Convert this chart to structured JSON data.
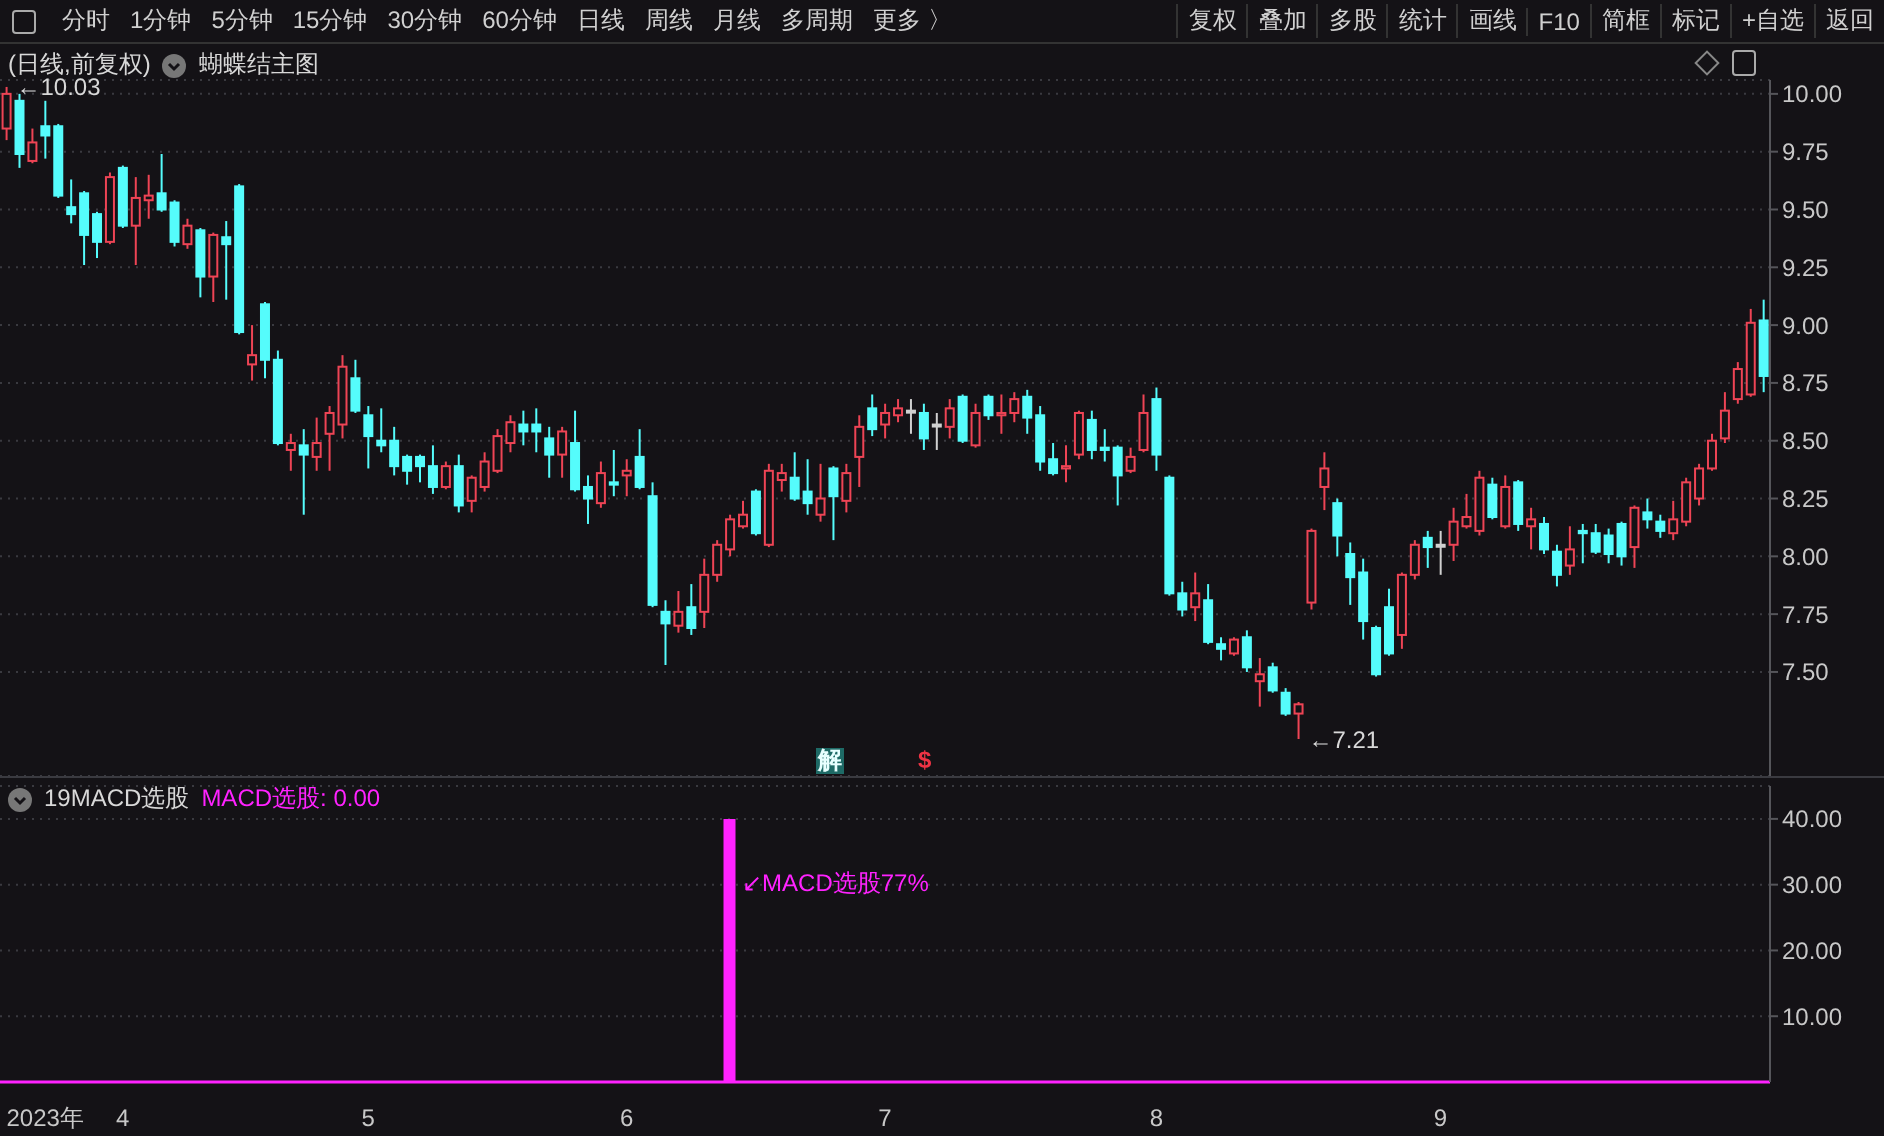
{
  "chart_data": [
    {
      "type": "candlestick",
      "title": "(日线,前复权)",
      "subtitle": "蝴蝶结主图",
      "annotations": [
        "分时",
        "1分钟",
        "5分钟",
        "15分钟",
        "30分钟",
        "60分钟",
        "日线",
        "周线",
        "月线",
        "多周期",
        "更多 〉",
        "复权",
        "叠加",
        "多股",
        "统计",
        "画线",
        "F10",
        "简框",
        "标记",
        "+自选",
        "返回",
        "←10.03",
        "←7.21",
        "解",
        "$"
      ],
      "categories": [
        null,
        null,
        null,
        null,
        null,
        null,
        null,
        null,
        null,
        null,
        null,
        null,
        null,
        null,
        null,
        null,
        null,
        null,
        null,
        null,
        null,
        null,
        null,
        null,
        null,
        null,
        null,
        null,
        null,
        null,
        null,
        null,
        null,
        null,
        null,
        null,
        null,
        null,
        null,
        null,
        null,
        null,
        null,
        null,
        null,
        null,
        null,
        null,
        null,
        null,
        null,
        null,
        null,
        null,
        null,
        null,
        null,
        null,
        null,
        null,
        null,
        null,
        null,
        null,
        null,
        null,
        null,
        null,
        null,
        null,
        null,
        null,
        null,
        null,
        null,
        null,
        null,
        null,
        null,
        null,
        null,
        null,
        null,
        null,
        null,
        null,
        null,
        null,
        null,
        null,
        null,
        null,
        null,
        null,
        null,
        null,
        null,
        null,
        null,
        null,
        null,
        null,
        null,
        null,
        null,
        null,
        null,
        null,
        null,
        null,
        null,
        null,
        null,
        null,
        null,
        null,
        null,
        null,
        null,
        null,
        null,
        null,
        null,
        null,
        null,
        null,
        null,
        null,
        null,
        null,
        null,
        null,
        null,
        null,
        null,
        null,
        null
      ],
      "ohlc": [
        [
          9.85,
          10.03,
          9.8,
          10.0
        ],
        [
          9.97,
          10.0,
          9.68,
          9.74
        ],
        [
          9.71,
          9.85,
          9.7,
          9.79
        ],
        [
          9.86,
          9.97,
          9.72,
          9.82
        ],
        [
          9.86,
          9.87,
          9.55,
          9.56
        ],
        [
          9.51,
          9.63,
          9.44,
          9.48
        ],
        [
          9.57,
          9.58,
          9.26,
          9.39
        ],
        [
          9.48,
          9.49,
          9.29,
          9.36
        ],
        [
          9.36,
          9.66,
          9.35,
          9.64
        ],
        [
          9.68,
          9.69,
          9.42,
          9.43
        ],
        [
          9.43,
          9.64,
          9.26,
          9.55
        ],
        [
          9.54,
          9.65,
          9.46,
          9.56
        ],
        [
          9.57,
          9.74,
          9.49,
          9.5
        ],
        [
          9.53,
          9.54,
          9.34,
          9.36
        ],
        [
          9.35,
          9.46,
          9.33,
          9.43
        ],
        [
          9.41,
          9.42,
          9.12,
          9.21
        ],
        [
          9.21,
          9.4,
          9.1,
          9.39
        ],
        [
          9.38,
          9.45,
          9.11,
          9.35
        ],
        [
          9.6,
          9.61,
          8.96,
          8.97
        ],
        [
          8.83,
          9.0,
          8.76,
          8.87
        ],
        [
          9.09,
          9.1,
          8.77,
          8.85
        ],
        [
          8.85,
          8.89,
          8.48,
          8.49
        ],
        [
          8.46,
          8.53,
          8.37,
          8.49
        ],
        [
          8.48,
          8.55,
          8.18,
          8.44
        ],
        [
          8.43,
          8.6,
          8.37,
          8.49
        ],
        [
          8.53,
          8.65,
          8.37,
          8.62
        ],
        [
          8.57,
          8.87,
          8.51,
          8.82
        ],
        [
          8.77,
          8.85,
          8.62,
          8.63
        ],
        [
          8.61,
          8.65,
          8.38,
          8.52
        ],
        [
          8.5,
          8.64,
          8.45,
          8.48
        ],
        [
          8.5,
          8.56,
          8.35,
          8.39
        ],
        [
          8.43,
          8.44,
          8.31,
          8.37
        ],
        [
          8.43,
          8.44,
          8.32,
          8.39
        ],
        [
          8.39,
          8.48,
          8.27,
          8.3
        ],
        [
          8.3,
          8.41,
          8.29,
          8.39
        ],
        [
          8.39,
          8.44,
          8.19,
          8.22
        ],
        [
          8.24,
          8.35,
          8.19,
          8.34
        ],
        [
          8.3,
          8.45,
          8.28,
          8.41
        ],
        [
          8.37,
          8.55,
          8.36,
          8.52
        ],
        [
          8.49,
          8.61,
          8.45,
          8.58
        ],
        [
          8.57,
          8.63,
          8.48,
          8.54
        ],
        [
          8.57,
          8.64,
          8.45,
          8.54
        ],
        [
          8.51,
          8.56,
          8.34,
          8.44
        ],
        [
          8.44,
          8.56,
          8.34,
          8.54
        ],
        [
          8.49,
          8.63,
          8.28,
          8.29
        ],
        [
          8.3,
          8.35,
          8.14,
          8.25
        ],
        [
          8.23,
          8.41,
          8.21,
          8.36
        ],
        [
          8.32,
          8.46,
          8.26,
          8.31
        ],
        [
          8.35,
          8.42,
          8.26,
          8.37
        ],
        [
          8.43,
          8.55,
          8.29,
          8.3
        ],
        [
          8.26,
          8.32,
          7.78,
          7.79
        ],
        [
          7.76,
          7.81,
          7.53,
          7.71
        ],
        [
          7.7,
          7.85,
          7.67,
          7.76
        ],
        [
          7.78,
          7.88,
          7.66,
          7.69
        ],
        [
          7.76,
          7.99,
          7.69,
          7.92
        ],
        [
          7.92,
          8.07,
          7.89,
          8.05
        ],
        [
          8.03,
          8.18,
          8.0,
          8.16
        ],
        [
          8.13,
          8.24,
          8.12,
          8.18
        ],
        [
          8.28,
          8.29,
          8.09,
          8.1
        ],
        [
          8.05,
          8.4,
          8.04,
          8.37
        ],
        [
          8.33,
          8.4,
          8.28,
          8.36
        ],
        [
          8.34,
          8.45,
          8.24,
          8.25
        ],
        [
          8.28,
          8.42,
          8.18,
          8.23
        ],
        [
          8.18,
          8.4,
          8.15,
          8.25
        ],
        [
          8.38,
          8.39,
          8.07,
          8.26
        ],
        [
          8.24,
          8.4,
          8.19,
          8.36
        ],
        [
          8.43,
          8.61,
          8.3,
          8.56
        ],
        [
          8.64,
          8.7,
          8.52,
          8.55
        ],
        [
          8.57,
          8.66,
          8.51,
          8.62
        ],
        [
          8.61,
          8.68,
          8.58,
          8.64
        ],
        [
          8.63,
          8.68,
          8.53,
          8.63
        ],
        [
          8.62,
          8.66,
          8.46,
          8.51
        ],
        [
          8.57,
          8.62,
          8.46,
          8.57
        ],
        [
          8.56,
          8.68,
          8.51,
          8.64
        ],
        [
          8.69,
          8.7,
          8.49,
          8.5
        ],
        [
          8.48,
          8.66,
          8.47,
          8.62
        ],
        [
          8.69,
          8.7,
          8.59,
          8.61
        ],
        [
          8.61,
          8.7,
          8.53,
          8.62
        ],
        [
          8.62,
          8.71,
          8.58,
          8.68
        ],
        [
          8.69,
          8.72,
          8.53,
          8.6
        ],
        [
          8.61,
          8.65,
          8.37,
          8.41
        ],
        [
          8.42,
          8.49,
          8.35,
          8.36
        ],
        [
          8.38,
          8.48,
          8.32,
          8.39
        ],
        [
          8.44,
          8.63,
          8.42,
          8.62
        ],
        [
          8.59,
          8.63,
          8.42,
          8.46
        ],
        [
          8.47,
          8.55,
          8.41,
          8.46
        ],
        [
          8.47,
          8.48,
          8.22,
          8.35
        ],
        [
          8.37,
          8.47,
          8.36,
          8.43
        ],
        [
          8.46,
          8.7,
          8.45,
          8.62
        ],
        [
          8.68,
          8.73,
          8.37,
          8.44
        ],
        [
          8.34,
          8.35,
          7.83,
          7.84
        ],
        [
          7.84,
          7.89,
          7.74,
          7.77
        ],
        [
          7.78,
          7.93,
          7.72,
          7.84
        ],
        [
          7.81,
          7.88,
          7.62,
          7.63
        ],
        [
          7.62,
          7.65,
          7.55,
          7.6
        ],
        [
          7.58,
          7.65,
          7.57,
          7.64
        ],
        [
          7.65,
          7.68,
          7.5,
          7.52
        ],
        [
          7.46,
          7.56,
          7.35,
          7.49
        ],
        [
          7.52,
          7.54,
          7.41,
          7.42
        ],
        [
          7.41,
          7.43,
          7.31,
          7.32
        ],
        [
          7.32,
          7.37,
          7.21,
          7.36
        ],
        [
          7.8,
          8.12,
          7.77,
          8.11
        ],
        [
          8.3,
          8.45,
          8.2,
          8.38
        ],
        [
          8.23,
          8.25,
          8.0,
          8.09
        ],
        [
          8.01,
          8.06,
          7.79,
          7.91
        ],
        [
          7.93,
          7.99,
          7.64,
          7.72
        ],
        [
          7.69,
          7.7,
          7.48,
          7.49
        ],
        [
          7.78,
          7.86,
          7.57,
          7.58
        ],
        [
          7.66,
          7.93,
          7.6,
          7.92
        ],
        [
          7.92,
          8.07,
          7.9,
          8.05
        ],
        [
          8.08,
          8.11,
          7.95,
          8.04
        ],
        [
          8.05,
          8.11,
          7.92,
          8.05
        ],
        [
          8.05,
          8.21,
          7.98,
          8.15
        ],
        [
          8.13,
          8.27,
          8.12,
          8.17
        ],
        [
          8.11,
          8.37,
          8.09,
          8.34
        ],
        [
          8.31,
          8.34,
          8.16,
          8.17
        ],
        [
          8.13,
          8.35,
          8.12,
          8.3
        ],
        [
          8.32,
          8.33,
          8.11,
          8.14
        ],
        [
          8.13,
          8.21,
          8.03,
          8.16
        ],
        [
          8.14,
          8.17,
          8.01,
          8.03
        ],
        [
          8.02,
          8.05,
          7.87,
          7.92
        ],
        [
          7.96,
          8.13,
          7.92,
          8.03
        ],
        [
          8.11,
          8.14,
          7.97,
          8.1
        ],
        [
          8.1,
          8.14,
          8.01,
          8.02
        ],
        [
          8.09,
          8.12,
          7.97,
          8.01
        ],
        [
          8.14,
          8.15,
          7.96,
          8.0
        ],
        [
          8.04,
          8.22,
          7.95,
          8.21
        ],
        [
          8.19,
          8.25,
          8.12,
          8.16
        ],
        [
          8.15,
          8.18,
          8.08,
          8.11
        ],
        [
          8.1,
          8.24,
          8.07,
          8.16
        ],
        [
          8.15,
          8.34,
          8.13,
          8.32
        ],
        [
          8.25,
          8.4,
          8.22,
          8.38
        ],
        [
          8.38,
          8.53,
          8.37,
          8.5
        ],
        [
          8.51,
          8.71,
          8.49,
          8.63
        ],
        [
          8.68,
          8.84,
          8.66,
          8.81
        ],
        [
          8.7,
          9.07,
          8.69,
          9.01
        ],
        [
          9.02,
          9.11,
          8.71,
          8.78
        ]
      ],
      "colors": [
        "#ee4455",
        "#55fcfc",
        "#ee4455",
        "#55fcfc",
        "#55fcfc",
        "#55fcfc",
        "#55fcfc",
        "#55fcfc",
        "#ee4455",
        "#55fcfc",
        "#ee4455",
        "#ee4455",
        "#55fcfc",
        "#55fcfc",
        "#ee4455",
        "#55fcfc",
        "#ee4455",
        "#55fcfc",
        "#55fcfc",
        "#ee4455",
        "#55fcfc",
        "#55fcfc",
        "#ee4455",
        "#55fcfc",
        "#ee4455",
        "#ee4455",
        "#ee4455",
        "#55fcfc",
        "#55fcfc",
        "#55fcfc",
        "#55fcfc",
        "#55fcfc",
        "#55fcfc",
        "#55fcfc",
        "#ee4455",
        "#55fcfc",
        "#ee4455",
        "#ee4455",
        "#ee4455",
        "#ee4455",
        "#55fcfc",
        "#55fcfc",
        "#55fcfc",
        "#ee4455",
        "#55fcfc",
        "#55fcfc",
        "#ee4455",
        "#55fcfc",
        "#ee4455",
        "#55fcfc",
        "#55fcfc",
        "#55fcfc",
        "#ee4455",
        "#55fcfc",
        "#ee4455",
        "#ee4455",
        "#ee4455",
        "#ee4455",
        "#55fcfc",
        "#ee4455",
        "#ee4455",
        "#55fcfc",
        "#55fcfc",
        "#ee4455",
        "#55fcfc",
        "#ee4455",
        "#ee4455",
        "#55fcfc",
        "#ee4455",
        "#ee4455",
        "#d0d0d0",
        "#55fcfc",
        "#d0d0d0",
        "#ee4455",
        "#55fcfc",
        "#ee4455",
        "#55fcfc",
        "#ee4455",
        "#ee4455",
        "#55fcfc",
        "#55fcfc",
        "#55fcfc",
        "#ee4455",
        "#ee4455",
        "#55fcfc",
        "#55fcfc",
        "#55fcfc",
        "#ee4455",
        "#ee4455",
        "#55fcfc",
        "#55fcfc",
        "#55fcfc",
        "#ee4455",
        "#55fcfc",
        "#55fcfc",
        "#ee4455",
        "#55fcfc",
        "#ee4455",
        "#55fcfc",
        "#55fcfc",
        "#ee4455",
        "#ee4455",
        "#ee4455",
        "#55fcfc",
        "#55fcfc",
        "#55fcfc",
        "#55fcfc",
        "#55fcfc",
        "#ee4455",
        "#ee4455",
        "#55fcfc",
        "#d0d0d0",
        "#ee4455",
        "#ee4455",
        "#ee4455",
        "#55fcfc",
        "#ee4455",
        "#55fcfc",
        "#ee4455",
        "#55fcfc",
        "#55fcfc",
        "#ee4455",
        "#55fcfc",
        "#55fcfc",
        "#55fcfc",
        "#55fcfc",
        "#ee4455",
        "#55fcfc",
        "#55fcfc",
        "#ee4455",
        "#ee4455",
        "#ee4455",
        "#ee4455",
        "#ee4455",
        "#ee4455",
        "#ee4455",
        "#55fcfc"
      ],
      "ylim": [
        7.05,
        10.06
      ],
      "yticks": [
        {
          "value": 7.5,
          "label": "7.50"
        },
        {
          "value": 7.75,
          "label": "7.75"
        },
        {
          "value": 8,
          "label": "8.00"
        },
        {
          "value": 8.25,
          "label": "8.25"
        },
        {
          "value": 8.5,
          "label": "8.50"
        },
        {
          "value": 8.75,
          "label": "8.75"
        },
        {
          "value": 9,
          "label": "9.00"
        },
        {
          "value": 9.25,
          "label": "9.25"
        },
        {
          "value": 9.5,
          "label": "9.50"
        },
        {
          "value": 9.75,
          "label": "9.75"
        },
        {
          "value": 10,
          "label": "10.00"
        }
      ],
      "grid": "y"
    },
    {
      "type": "bar",
      "title": "19MACD选股",
      "subtitle": "MACD选股: 0.00",
      "annotations": [
        "↙MACD选股77%"
      ],
      "categories": [
        null,
        null,
        null,
        "2023年",
        null,
        null,
        null,
        null,
        null,
        "4",
        null,
        null,
        null,
        null,
        null,
        null,
        null,
        null,
        null,
        null,
        null,
        null,
        null,
        null,
        null,
        null,
        null,
        null,
        "5",
        null,
        null,
        null,
        null,
        null,
        null,
        null,
        null,
        null,
        null,
        null,
        null,
        null,
        null,
        null,
        null,
        null,
        null,
        null,
        "6",
        null,
        null,
        null,
        null,
        null,
        null,
        null,
        null,
        null,
        null,
        null,
        null,
        null,
        null,
        null,
        null,
        null,
        null,
        null,
        "7",
        null,
        null,
        null,
        null,
        null,
        null,
        null,
        null,
        null,
        null,
        null,
        null,
        null,
        null,
        null,
        null,
        null,
        null,
        null,
        null,
        "8",
        null,
        null,
        null,
        null,
        null,
        null,
        null,
        null,
        null,
        null,
        null,
        null,
        null,
        null,
        null,
        null,
        null,
        null,
        null,
        null,
        null,
        "9",
        null,
        null,
        null,
        null,
        null,
        null,
        null,
        null,
        null,
        null,
        null,
        null,
        null,
        null,
        null,
        null,
        null,
        null,
        null,
        null,
        null,
        null,
        null,
        null,
        null
      ],
      "series": [
        {
          "color": "#ff22ff",
          "values": [
            0,
            0,
            0,
            0,
            0,
            0,
            0,
            0,
            0,
            0,
            0,
            0,
            0,
            0,
            0,
            0,
            0,
            0,
            0,
            0,
            0,
            0,
            0,
            0,
            0,
            0,
            0,
            0,
            0,
            0,
            0,
            0,
            0,
            0,
            0,
            0,
            0,
            0,
            0,
            0,
            0,
            0,
            0,
            0,
            0,
            0,
            0,
            0,
            0,
            0,
            0,
            0,
            0,
            0,
            0,
            0,
            40,
            0,
            0,
            0,
            0,
            0,
            0,
            0,
            0,
            0,
            0,
            0,
            0,
            0,
            0,
            0,
            0,
            0,
            0,
            0,
            0,
            0,
            0,
            0,
            0,
            0,
            0,
            0,
            0,
            0,
            0,
            0,
            0,
            0,
            0,
            0,
            0,
            0,
            0,
            0,
            0,
            0,
            0,
            0,
            0,
            0,
            0,
            0,
            0,
            0,
            0,
            0,
            0,
            0,
            0,
            0,
            0,
            0,
            0,
            0,
            0,
            0,
            0,
            0,
            0,
            0,
            0,
            0,
            0,
            0,
            0,
            0,
            0,
            0,
            0,
            0,
            0,
            0,
            0,
            0,
            0
          ]
        }
      ],
      "ylim": [
        0,
        45
      ],
      "yticks": [
        {
          "value": 10,
          "label": "10.00"
        },
        {
          "value": 20,
          "label": "20.00"
        },
        {
          "value": 30,
          "label": "30.00"
        },
        {
          "value": 40,
          "label": "40.00"
        }
      ],
      "grid": "y"
    }
  ]
}
